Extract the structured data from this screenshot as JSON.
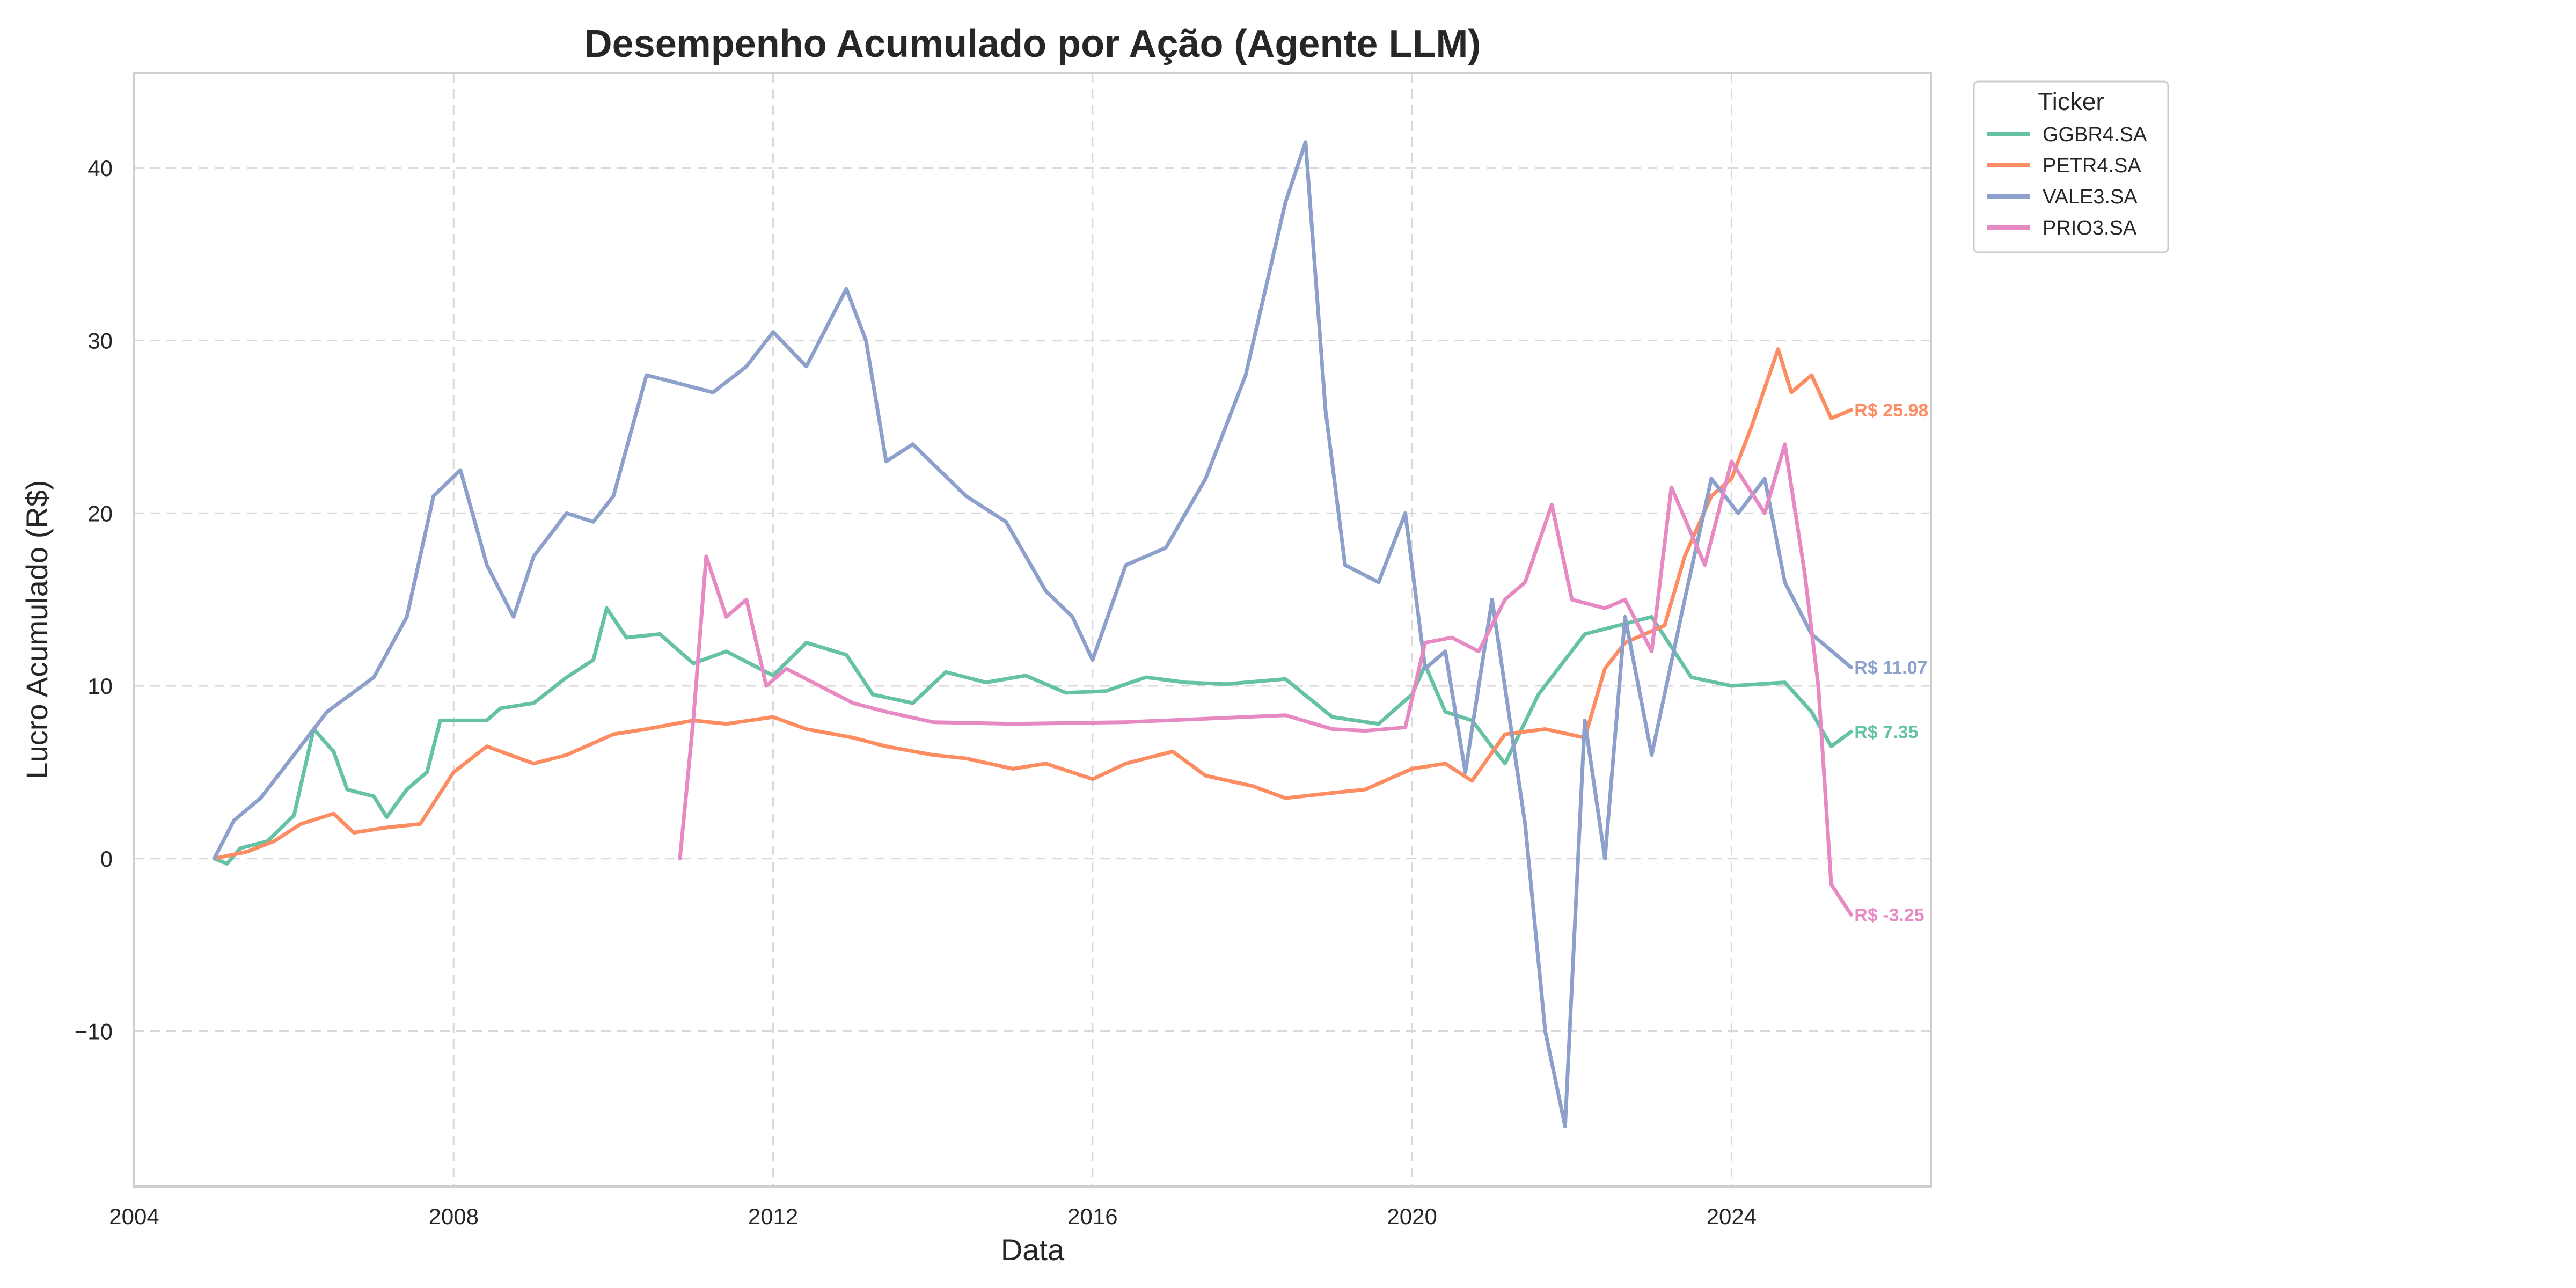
{
  "chart_data": {
    "type": "line",
    "title": "Desempenho Acumulado por Ação (Agente LLM)",
    "xlabel": "Data",
    "ylabel": "Lucro Acumulado (R$)",
    "xlim": [
      "2004-01-01",
      "2026-07-01"
    ],
    "ylim": [
      -19,
      45.5
    ],
    "x_ticks": [
      "2004",
      "2008",
      "2012",
      "2016",
      "2020",
      "2024"
    ],
    "y_ticks": [
      -10,
      0,
      10,
      20,
      30,
      40
    ],
    "grid": true,
    "legend": {
      "title": "Ticker",
      "placement": "outside-top-right"
    },
    "series": [
      {
        "name": "GGBR4.SA",
        "color": "#66c2a5",
        "end_label": "R$ 7.35",
        "points": [
          [
            "2005-01-01",
            0
          ],
          [
            "2005-03-01",
            -0.3
          ],
          [
            "2005-05-01",
            0.6
          ],
          [
            "2005-09-01",
            1.0
          ],
          [
            "2006-01-01",
            2.5
          ],
          [
            "2006-04-01",
            7.5
          ],
          [
            "2006-07-01",
            6.2
          ],
          [
            "2006-09-01",
            4.0
          ],
          [
            "2007-01-01",
            3.6
          ],
          [
            "2007-03-01",
            2.4
          ],
          [
            "2007-06-01",
            4.0
          ],
          [
            "2007-09-01",
            5.0
          ],
          [
            "2007-11-01",
            8.0
          ],
          [
            "2008-06-01",
            8.0
          ],
          [
            "2008-08-01",
            8.7
          ],
          [
            "2009-01-01",
            9.0
          ],
          [
            "2009-06-01",
            10.5
          ],
          [
            "2009-10-01",
            11.5
          ],
          [
            "2009-12-01",
            14.5
          ],
          [
            "2010-03-01",
            12.8
          ],
          [
            "2010-08-01",
            13.0
          ],
          [
            "2011-01-01",
            11.3
          ],
          [
            "2011-06-01",
            12.0
          ],
          [
            "2012-01-01",
            10.6
          ],
          [
            "2012-06-01",
            12.5
          ],
          [
            "2012-12-01",
            11.8
          ],
          [
            "2013-04-01",
            9.5
          ],
          [
            "2013-10-01",
            9.0
          ],
          [
            "2014-03-01",
            10.8
          ],
          [
            "2014-09-01",
            10.2
          ],
          [
            "2015-03-01",
            10.6
          ],
          [
            "2015-09-01",
            9.6
          ],
          [
            "2016-03-01",
            9.7
          ],
          [
            "2016-09-01",
            10.5
          ],
          [
            "2017-03-01",
            10.2
          ],
          [
            "2017-09-01",
            10.1
          ],
          [
            "2018-06-01",
            10.4
          ],
          [
            "2019-01-01",
            8.2
          ],
          [
            "2019-08-01",
            7.8
          ],
          [
            "2020-01-01",
            9.5
          ],
          [
            "2020-03-01",
            11.2
          ],
          [
            "2020-06-01",
            8.5
          ],
          [
            "2020-10-01",
            8.0
          ],
          [
            "2021-03-01",
            5.5
          ],
          [
            "2021-08-01",
            9.5
          ],
          [
            "2022-03-01",
            13.0
          ],
          [
            "2022-08-01",
            13.5
          ],
          [
            "2023-01-01",
            14.0
          ],
          [
            "2023-07-01",
            10.5
          ],
          [
            "2024-01-01",
            10.0
          ],
          [
            "2024-09-01",
            10.2
          ],
          [
            "2025-01-01",
            8.5
          ],
          [
            "2025-04-01",
            6.5
          ],
          [
            "2025-07-01",
            7.35
          ]
        ]
      },
      {
        "name": "PETR4.SA",
        "color": "#fc8d62",
        "end_label": "R$ 25.98",
        "points": [
          [
            "2005-01-01",
            0
          ],
          [
            "2005-06-01",
            0.4
          ],
          [
            "2005-10-01",
            1.0
          ],
          [
            "2006-02-01",
            2.0
          ],
          [
            "2006-07-01",
            2.6
          ],
          [
            "2006-10-01",
            1.5
          ],
          [
            "2007-03-01",
            1.8
          ],
          [
            "2007-08-01",
            2.0
          ],
          [
            "2008-01-01",
            5.0
          ],
          [
            "2008-06-01",
            6.5
          ],
          [
            "2009-01-01",
            5.5
          ],
          [
            "2009-06-01",
            6.0
          ],
          [
            "2010-01-01",
            7.2
          ],
          [
            "2010-06-01",
            7.5
          ],
          [
            "2011-01-01",
            8.0
          ],
          [
            "2011-06-01",
            7.8
          ],
          [
            "2012-01-01",
            8.2
          ],
          [
            "2012-06-01",
            7.5
          ],
          [
            "2013-01-01",
            7.0
          ],
          [
            "2013-06-01",
            6.5
          ],
          [
            "2014-01-01",
            6.0
          ],
          [
            "2014-06-01",
            5.8
          ],
          [
            "2015-01-01",
            5.2
          ],
          [
            "2015-06-01",
            5.5
          ],
          [
            "2016-01-01",
            4.6
          ],
          [
            "2016-06-01",
            5.5
          ],
          [
            "2017-01-01",
            6.2
          ],
          [
            "2017-06-01",
            4.8
          ],
          [
            "2018-01-01",
            4.2
          ],
          [
            "2018-06-01",
            3.5
          ],
          [
            "2019-01-01",
            3.8
          ],
          [
            "2019-06-01",
            4.0
          ],
          [
            "2020-01-01",
            5.2
          ],
          [
            "2020-06-01",
            5.5
          ],
          [
            "2020-10-01",
            4.5
          ],
          [
            "2021-03-01",
            7.2
          ],
          [
            "2021-09-01",
            7.5
          ],
          [
            "2022-03-01",
            7.0
          ],
          [
            "2022-06-01",
            11.0
          ],
          [
            "2022-09-01",
            12.5
          ],
          [
            "2023-03-01",
            13.5
          ],
          [
            "2023-06-01",
            17.5
          ],
          [
            "2023-10-01",
            21.0
          ],
          [
            "2024-01-01",
            22.0
          ],
          [
            "2024-04-01",
            25.0
          ],
          [
            "2024-08-01",
            29.5
          ],
          [
            "2024-10-01",
            27.0
          ],
          [
            "2025-01-01",
            28.0
          ],
          [
            "2025-04-01",
            25.5
          ],
          [
            "2025-07-01",
            25.98
          ]
        ]
      },
      {
        "name": "VALE3.SA",
        "color": "#8da0cb",
        "end_label": "R$ 11.07",
        "points": [
          [
            "2005-01-01",
            0
          ],
          [
            "2005-04-01",
            2.2
          ],
          [
            "2005-08-01",
            3.5
          ],
          [
            "2006-01-01",
            6.0
          ],
          [
            "2006-06-01",
            8.5
          ],
          [
            "2007-01-01",
            10.5
          ],
          [
            "2007-06-01",
            14.0
          ],
          [
            "2007-10-01",
            21.0
          ],
          [
            "2008-02-01",
            22.5
          ],
          [
            "2008-06-01",
            17.0
          ],
          [
            "2008-10-01",
            14.0
          ],
          [
            "2009-01-01",
            17.5
          ],
          [
            "2009-06-01",
            20.0
          ],
          [
            "2009-10-01",
            19.5
          ],
          [
            "2010-01-01",
            21.0
          ],
          [
            "2010-06-01",
            28.0
          ],
          [
            "2010-11-01",
            27.5
          ],
          [
            "2011-04-01",
            27.0
          ],
          [
            "2011-09-01",
            28.5
          ],
          [
            "2012-01-01",
            30.5
          ],
          [
            "2012-06-01",
            28.5
          ],
          [
            "2012-12-01",
            33.0
          ],
          [
            "2013-03-01",
            30.0
          ],
          [
            "2013-06-01",
            23.0
          ],
          [
            "2013-10-01",
            24.0
          ],
          [
            "2014-06-01",
            21.0
          ],
          [
            "2014-12-01",
            19.5
          ],
          [
            "2015-06-01",
            15.5
          ],
          [
            "2015-10-01",
            14.0
          ],
          [
            "2016-01-01",
            11.5
          ],
          [
            "2016-06-01",
            17.0
          ],
          [
            "2016-12-01",
            18.0
          ],
          [
            "2017-06-01",
            22.0
          ],
          [
            "2017-12-01",
            28.0
          ],
          [
            "2018-06-01",
            38.0
          ],
          [
            "2018-09-01",
            41.5
          ],
          [
            "2018-12-01",
            26.0
          ],
          [
            "2019-03-01",
            17.0
          ],
          [
            "2019-08-01",
            16.0
          ],
          [
            "2019-12-01",
            20.0
          ],
          [
            "2020-03-01",
            11.0
          ],
          [
            "2020-06-01",
            12.0
          ],
          [
            "2020-09-01",
            5.0
          ],
          [
            "2021-01-01",
            15.0
          ],
          [
            "2021-06-01",
            2.0
          ],
          [
            "2021-09-01",
            -10.0
          ],
          [
            "2021-12-01",
            -15.5
          ],
          [
            "2022-03-01",
            8.0
          ],
          [
            "2022-06-01",
            0.0
          ],
          [
            "2022-09-01",
            14.0
          ],
          [
            "2023-01-01",
            6.0
          ],
          [
            "2023-06-01",
            15.0
          ],
          [
            "2023-10-01",
            22.0
          ],
          [
            "2024-02-01",
            20.0
          ],
          [
            "2024-06-01",
            22.0
          ],
          [
            "2024-09-01",
            16.0
          ],
          [
            "2025-01-01",
            13.0
          ],
          [
            "2025-07-01",
            11.07
          ]
        ]
      },
      {
        "name": "PRIO3.SA",
        "color": "#e78ac3",
        "end_label": "R$ -3.25",
        "points": [
          [
            "2010-11-01",
            0
          ],
          [
            "2011-01-01",
            8.0
          ],
          [
            "2011-03-01",
            17.5
          ],
          [
            "2011-06-01",
            14.0
          ],
          [
            "2011-09-01",
            15.0
          ],
          [
            "2011-12-01",
            10.0
          ],
          [
            "2012-03-01",
            11.0
          ],
          [
            "2012-08-01",
            10.0
          ],
          [
            "2013-01-01",
            9.0
          ],
          [
            "2013-06-01",
            8.5
          ],
          [
            "2014-01-01",
            7.9
          ],
          [
            "2015-01-01",
            7.8
          ],
          [
            "2016-06-01",
            7.9
          ],
          [
            "2017-06-01",
            8.1
          ],
          [
            "2018-06-01",
            8.3
          ],
          [
            "2019-01-01",
            7.5
          ],
          [
            "2019-06-01",
            7.4
          ],
          [
            "2019-12-01",
            7.6
          ],
          [
            "2020-03-01",
            12.5
          ],
          [
            "2020-07-01",
            12.8
          ],
          [
            "2020-11-01",
            12.0
          ],
          [
            "2021-03-01",
            15.0
          ],
          [
            "2021-06-01",
            16.0
          ],
          [
            "2021-10-01",
            20.5
          ],
          [
            "2022-01-01",
            15.0
          ],
          [
            "2022-06-01",
            14.5
          ],
          [
            "2022-09-01",
            15.0
          ],
          [
            "2023-01-01",
            12.0
          ],
          [
            "2023-04-01",
            21.5
          ],
          [
            "2023-09-01",
            17.0
          ],
          [
            "2024-01-01",
            23.0
          ],
          [
            "2024-06-01",
            20.0
          ],
          [
            "2024-09-01",
            24.0
          ],
          [
            "2024-12-01",
            16.5
          ],
          [
            "2025-02-01",
            10.0
          ],
          [
            "2025-04-01",
            -1.5
          ],
          [
            "2025-07-01",
            -3.25
          ]
        ]
      }
    ]
  }
}
